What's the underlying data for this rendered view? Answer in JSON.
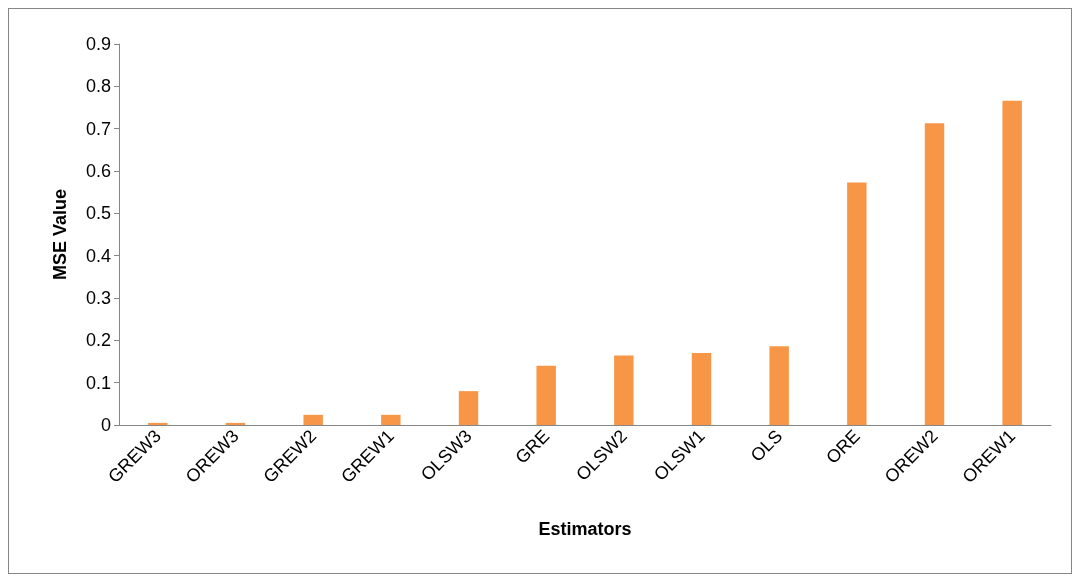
{
  "chart_data": {
    "type": "bar",
    "xlabel": "Estimators",
    "ylabel": "MSE Value",
    "categories": [
      "GREW3",
      "OREW3",
      "GREW2",
      "GREW1",
      "OLSW3",
      "GRE",
      "OLSW2",
      "OLSW1",
      "OLS",
      "ORE",
      "OREW2",
      "OREW1"
    ],
    "values": [
      0.005,
      0.005,
      0.024,
      0.024,
      0.08,
      0.14,
      0.164,
      0.17,
      0.186,
      0.573,
      0.713,
      0.766
    ],
    "color": "#f79646",
    "ylim": [
      0,
      0.9
    ],
    "yticks": [
      0,
      0.1,
      0.2,
      0.3,
      0.4,
      0.5,
      0.6,
      0.7,
      0.8,
      0.9
    ],
    "grid": false
  }
}
